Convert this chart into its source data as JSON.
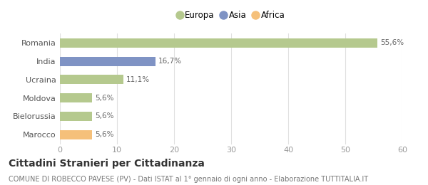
{
  "categories": [
    "Marocco",
    "Bielorussia",
    "Moldova",
    "Ucraina",
    "India",
    "Romania"
  ],
  "values": [
    5.6,
    5.6,
    5.6,
    11.1,
    16.7,
    55.6
  ],
  "labels": [
    "5,6%",
    "5,6%",
    "5,6%",
    "11,1%",
    "16,7%",
    "55,6%"
  ],
  "colors": [
    "#f5c07a",
    "#b5c98e",
    "#b5c98e",
    "#b5c98e",
    "#7f93c4",
    "#b5c98e"
  ],
  "legend_items": [
    {
      "label": "Europa",
      "color": "#b5c98e"
    },
    {
      "label": "Asia",
      "color": "#7f93c4"
    },
    {
      "label": "Africa",
      "color": "#f5c07a"
    }
  ],
  "xlim": [
    0,
    60
  ],
  "xticks": [
    0,
    10,
    20,
    30,
    40,
    50,
    60
  ],
  "title": "Cittadini Stranieri per Cittadinanza",
  "subtitle": "COMUNE DI ROBECCO PAVESE (PV) - Dati ISTAT al 1° gennaio di ogni anno - Elaborazione TUTTITALIA.IT",
  "bg_color": "#ffffff",
  "grid_color": "#e0e0e0",
  "bar_height": 0.5,
  "label_fontsize": 7.5,
  "tick_label_fontsize": 8,
  "ytick_fontsize": 8,
  "title_fontsize": 10,
  "subtitle_fontsize": 7
}
